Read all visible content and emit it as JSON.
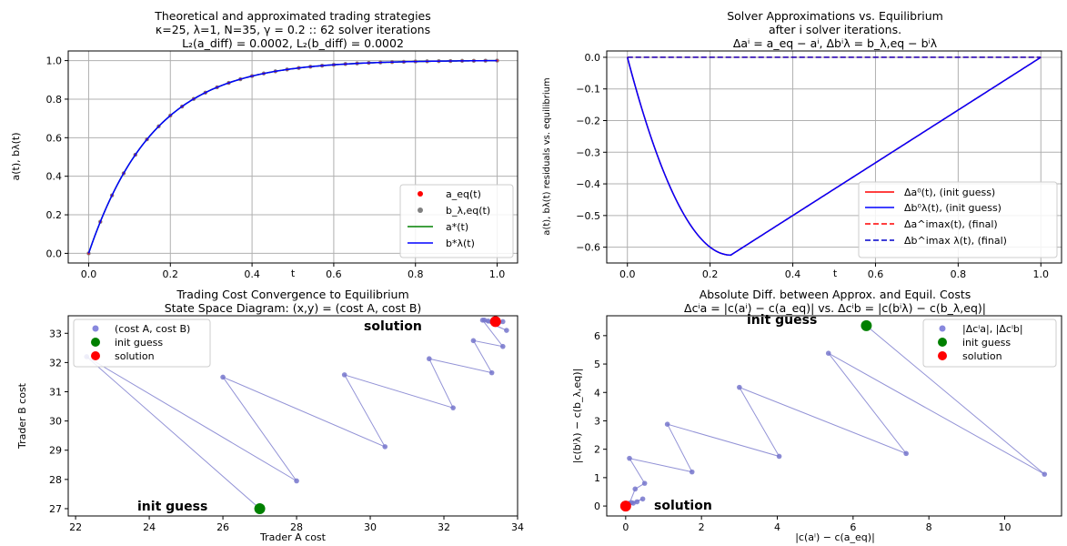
{
  "chart_data": [
    {
      "type": "line",
      "title_lines": [
        "Theoretical and approximated trading strategies",
        "κ=25, λ=1, N=35, γ = 0.2 :: 62 solver iterations",
        "L₂(a_diff) = 0.0002, L₂(b_diff) = 0.0002"
      ],
      "xlabel": "t",
      "ylabel": "a(t), bλ(t)",
      "xlim": [
        -0.05,
        1.05
      ],
      "ylim": [
        -0.05,
        1.05
      ],
      "xticks": [
        "0.0",
        "0.2",
        "0.4",
        "0.6",
        "0.8",
        "1.0"
      ],
      "yticks": [
        "0.0",
        "0.2",
        "0.4",
        "0.6",
        "0.8",
        "1.0"
      ],
      "grid": true,
      "legend_position": "lower-right",
      "kappa": 25,
      "N": 35,
      "series": [
        {
          "name": "a_eq(t)",
          "kind": "scatter",
          "color": "#ff0000"
        },
        {
          "name": "b_λ,eq(t)",
          "kind": "scatter",
          "color": "#808080"
        },
        {
          "name": "a*(t)",
          "kind": "line",
          "color": "#008000"
        },
        {
          "name": "b*λ(t)",
          "kind": "line",
          "color": "#0000ff"
        }
      ]
    },
    {
      "type": "line",
      "title_lines": [
        "Solver Approximations vs. Equilibrium",
        "after i solver iterations.",
        "Δaⁱ = a_eq − aⁱ, Δbⁱλ = b_λ,eq − bⁱλ"
      ],
      "xlabel": "t",
      "ylabel": "a(t), bλ(t) residuals vs. equilibrium",
      "xlim": [
        -0.05,
        1.05
      ],
      "ylim": [
        -0.65,
        0.02
      ],
      "xticks": [
        "0.0",
        "0.2",
        "0.4",
        "0.6",
        "0.8",
        "1.0"
      ],
      "yticks": [
        "0.0",
        "−0.1",
        "−0.2",
        "−0.3",
        "−0.4",
        "−0.5",
        "−0.6"
      ],
      "grid": true,
      "legend_position": "lower-right",
      "min_point": {
        "t": 0.25,
        "value": -0.625
      },
      "series": [
        {
          "name": "Δa⁰(t), (init guess)",
          "color": "#ff0000",
          "dash": "solid"
        },
        {
          "name": "Δb⁰λ(t), (init guess)",
          "color": "#0000ff",
          "dash": "solid"
        },
        {
          "name": "Δa^imax(t), (final)",
          "color": "#ff0000",
          "dash": "dashed"
        },
        {
          "name": "Δb^imax λ(t), (final)",
          "color": "#0000cc",
          "dash": "dashed"
        }
      ]
    },
    {
      "type": "scatter",
      "title_lines": [
        "Trading Cost Convergence to Equilibrium",
        "State Space Diagram: (x,y) = (cost A, cost B)"
      ],
      "xlabel": "Trader A cost",
      "ylabel": "Trader B cost",
      "xlim": [
        21.8,
        34.0
      ],
      "ylim": [
        26.75,
        33.6
      ],
      "xticks": [
        22,
        24,
        26,
        28,
        30,
        32,
        34
      ],
      "yticks": [
        27,
        28,
        29,
        30,
        31,
        32,
        33
      ],
      "legend": [
        "(cost A, cost B)",
        "init guess",
        "solution"
      ],
      "legend_position": "upper-left",
      "path": [
        [
          27.0,
          27.0
        ],
        [
          22.3,
          32.2
        ],
        [
          28.0,
          27.95
        ],
        [
          26.0,
          31.5
        ],
        [
          30.4,
          29.12
        ],
        [
          29.3,
          31.58
        ],
        [
          32.25,
          30.45
        ],
        [
          31.6,
          32.13
        ],
        [
          33.3,
          31.65
        ],
        [
          32.8,
          32.75
        ],
        [
          33.6,
          32.55
        ],
        [
          33.05,
          33.45
        ],
        [
          33.7,
          33.1
        ],
        [
          33.1,
          33.45
        ],
        [
          33.6,
          33.4
        ],
        [
          33.2,
          33.42
        ],
        [
          33.5,
          33.38
        ],
        [
          33.3,
          33.4
        ]
      ],
      "init": [
        27.0,
        27.0
      ],
      "solution": [
        33.4,
        33.4
      ],
      "annotations": {
        "solution": "solution",
        "init": "init guess"
      }
    },
    {
      "type": "scatter",
      "title_lines": [
        "Absolute Diff. between Approx. and Equil. Costs",
        "Δcⁱa = |c(aⁱ) − c(a_eq)| vs. Δcⁱb = |c(bⁱλ) − c(b_λ,eq)|"
      ],
      "xlabel": "|c(aⁱ) − c(a_eq)|",
      "ylabel": "|c(bⁱλ) − c(b_λ,eq)|",
      "xlim": [
        -0.5,
        11.5
      ],
      "ylim": [
        -0.35,
        6.7
      ],
      "xticks": [
        0,
        2,
        4,
        6,
        8,
        10
      ],
      "yticks": [
        0,
        1,
        2,
        3,
        4,
        5,
        6
      ],
      "legend": [
        "|Δcⁱa|, |Δcⁱb|",
        "init guess",
        "solution"
      ],
      "legend_position": "upper-right",
      "path": [
        [
          6.35,
          6.35
        ],
        [
          11.05,
          1.12
        ],
        [
          5.35,
          5.38
        ],
        [
          7.4,
          1.85
        ],
        [
          3.0,
          4.18
        ],
        [
          4.05,
          1.75
        ],
        [
          1.1,
          2.88
        ],
        [
          1.75,
          1.2
        ],
        [
          0.1,
          1.68
        ],
        [
          0.5,
          0.8
        ],
        [
          0.25,
          0.6
        ],
        [
          0.1,
          0.1
        ],
        [
          0.45,
          0.25
        ],
        [
          0.2,
          0.1
        ],
        [
          0.3,
          0.15
        ],
        [
          0.15,
          0.12
        ]
      ],
      "init": [
        6.35,
        6.35
      ],
      "solution": [
        0.0,
        0.0
      ],
      "annotations": {
        "solution": "solution",
        "init": "init guess"
      }
    }
  ]
}
